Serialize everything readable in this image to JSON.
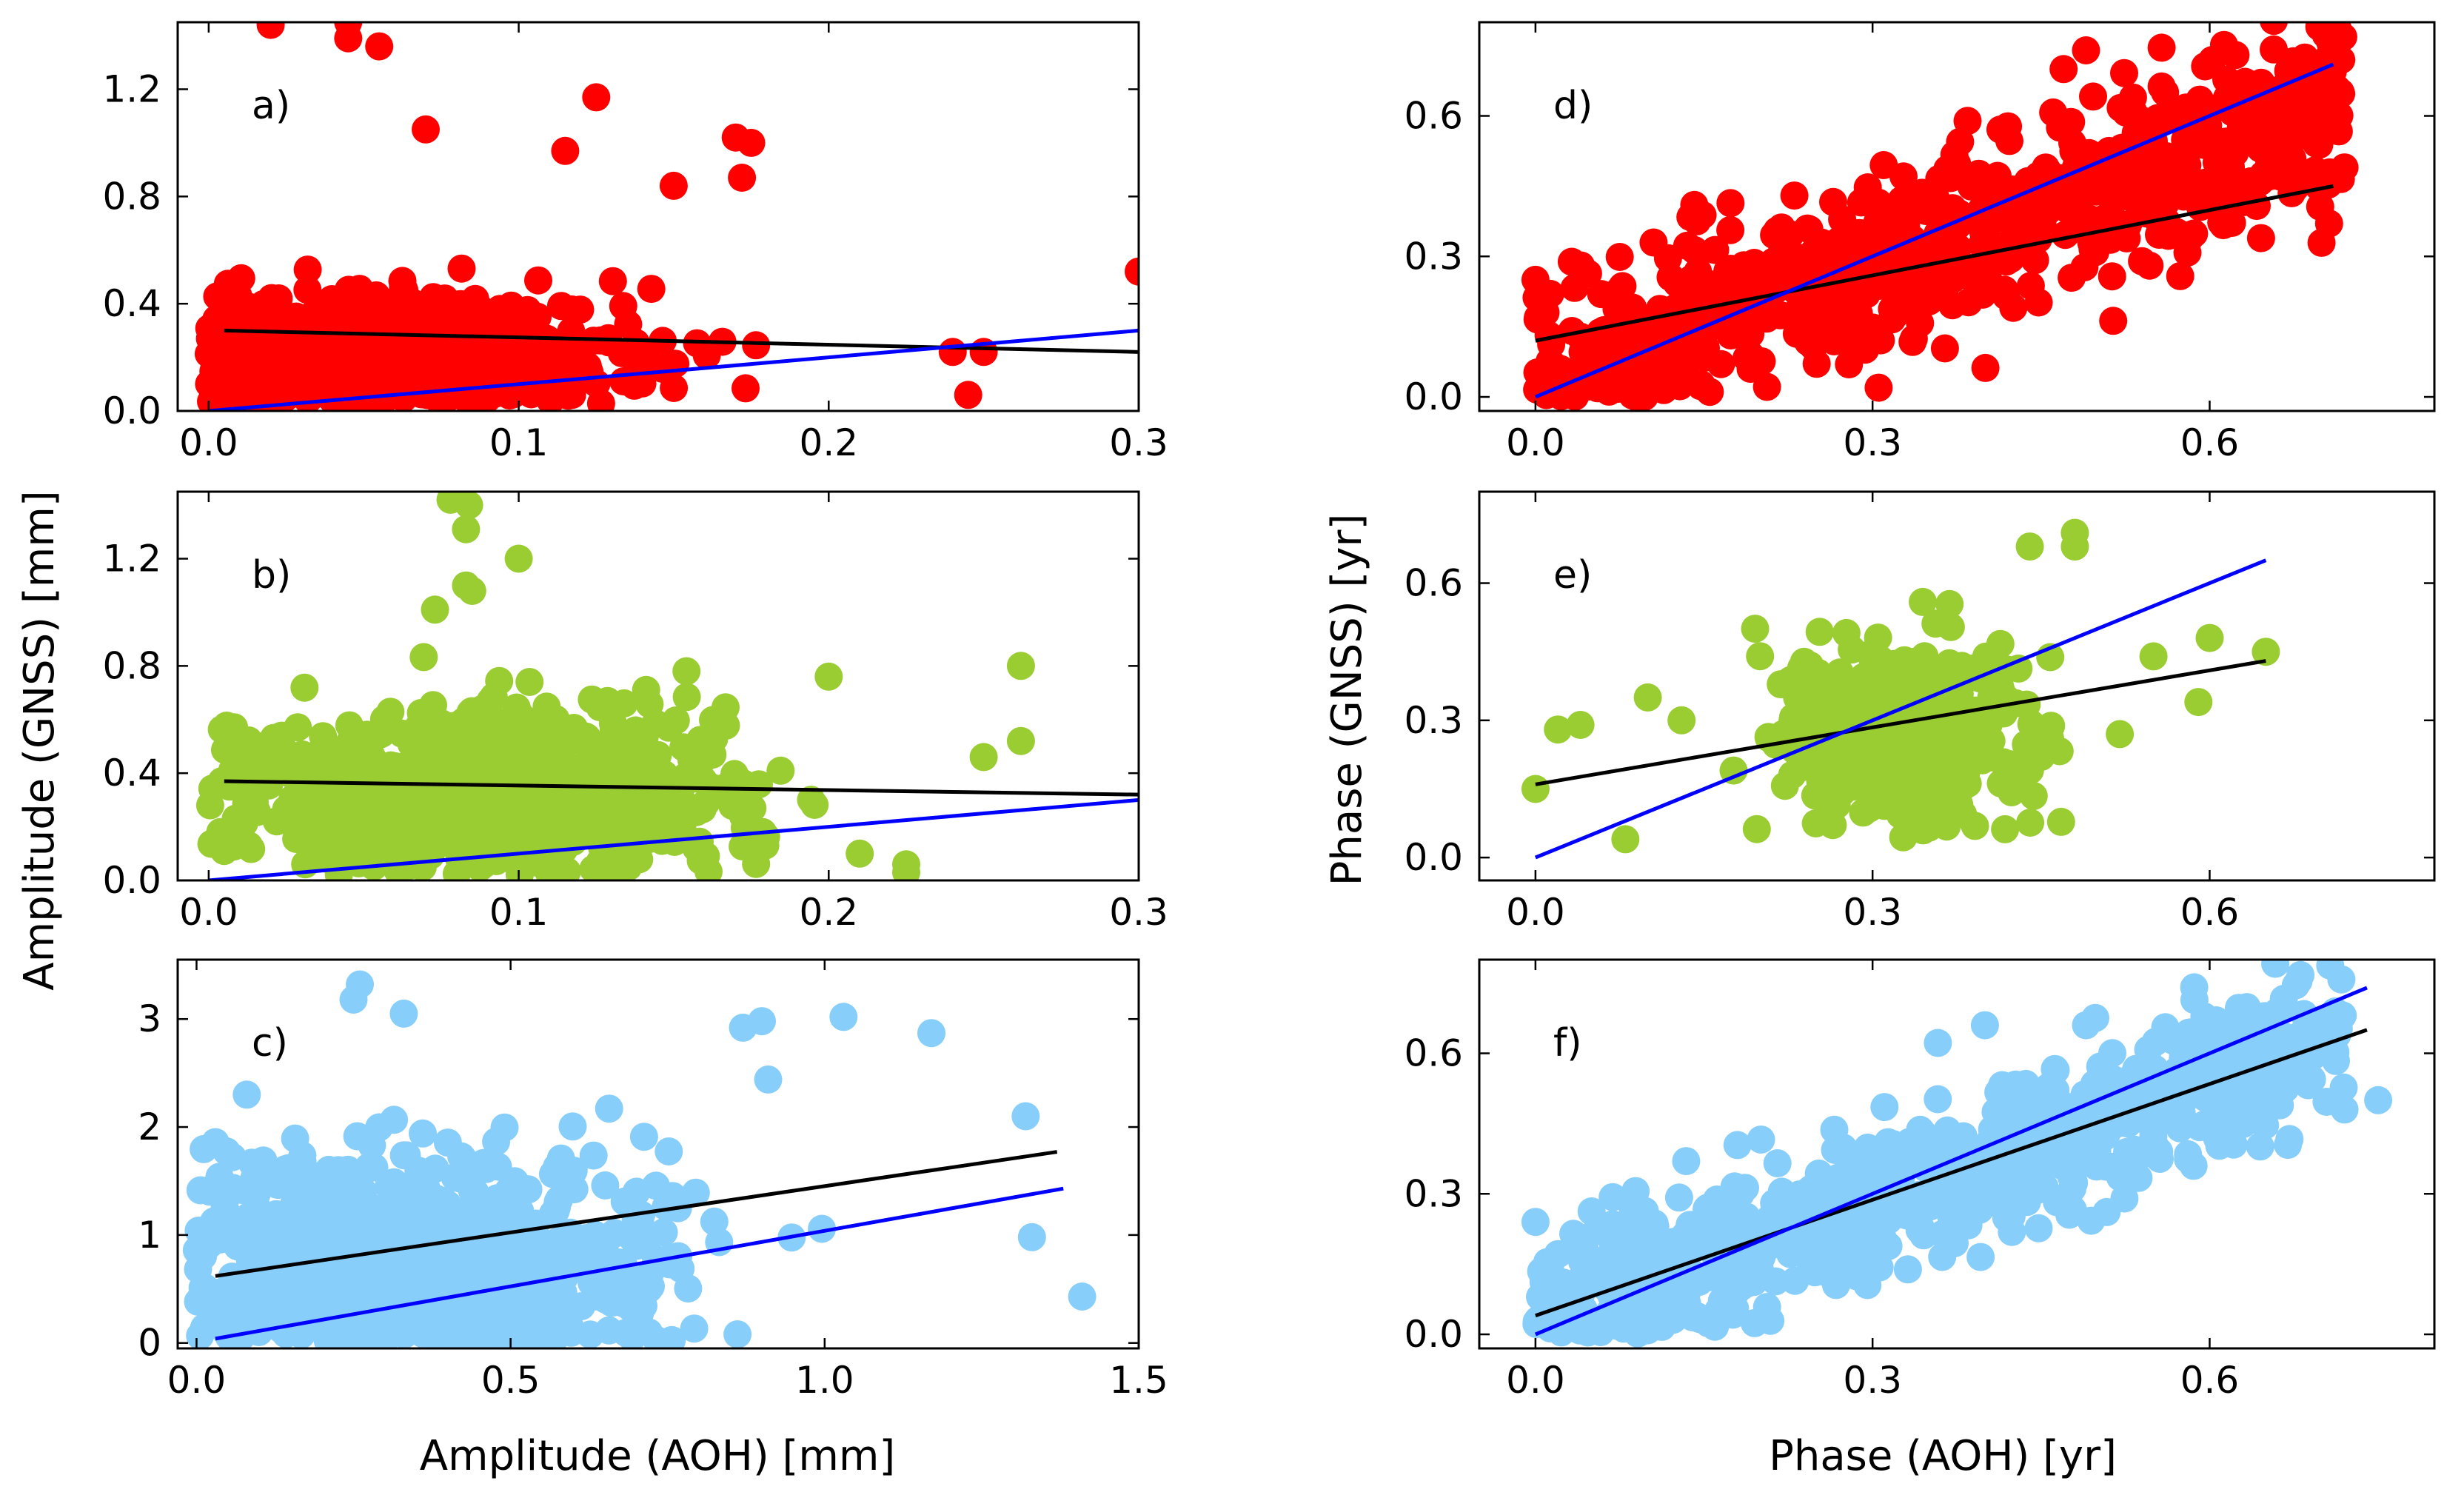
{
  "figure": {
    "left_ylabel": "Amplitude (GNSS) [mm]",
    "right_ylabel": "Phase (GNSS) [yr]",
    "left_xlabel": "Amplitude (AOH) [mm]",
    "right_xlabel": "Phase (AOH) [yr]"
  },
  "chart_data": [
    {
      "id": "a",
      "type": "scatter",
      "label": "a)",
      "color": "#ff0000",
      "xlim": [
        -0.01,
        0.3
      ],
      "ylim": [
        0.0,
        1.45
      ],
      "xticks": [
        0.0,
        0.1,
        0.2,
        0.3
      ],
      "xtick_labels": [
        "0.0",
        "0.1",
        "0.2",
        "0.3"
      ],
      "yticks": [
        0.0,
        0.4,
        0.8,
        1.2
      ],
      "ytick_labels": [
        "0.0",
        "0.4",
        "0.8",
        "1.2"
      ],
      "n_points": 700,
      "cloud": {
        "x_mean": 0.055,
        "x_spread": 0.04,
        "x_max": 0.2,
        "y_mean": 0.22,
        "y_spread": 0.11
      },
      "highlights": [
        [
          0.02,
          1.44
        ],
        [
          0.045,
          1.45
        ],
        [
          0.045,
          1.39
        ],
        [
          0.055,
          1.36
        ],
        [
          0.125,
          1.17
        ],
        [
          0.17,
          1.02
        ],
        [
          0.175,
          1.0
        ],
        [
          0.172,
          0.87
        ],
        [
          0.07,
          1.05
        ],
        [
          0.15,
          0.84
        ],
        [
          0.115,
          0.97
        ],
        [
          0.24,
          0.22
        ],
        [
          0.245,
          0.06
        ],
        [
          0.25,
          0.22
        ],
        [
          0.3,
          0.52
        ]
      ],
      "fit_line": {
        "color": "#000000",
        "x": [
          0.005,
          0.3
        ],
        "y": [
          0.3,
          0.22
        ]
      },
      "one_to_one": {
        "color": "#0000ff",
        "x": [
          0.0,
          0.3
        ],
        "y": [
          0.0,
          0.3
        ]
      }
    },
    {
      "id": "b",
      "type": "scatter",
      "label": "b)",
      "color": "#9acd32",
      "xlim": [
        -0.01,
        0.3
      ],
      "ylim": [
        0.0,
        1.45
      ],
      "xticks": [
        0.0,
        0.1,
        0.2,
        0.3
      ],
      "xtick_labels": [
        "0.0",
        "0.1",
        "0.2",
        "0.3"
      ],
      "yticks": [
        0.0,
        0.4,
        0.8,
        1.2
      ],
      "ytick_labels": [
        "0.0",
        "0.4",
        "0.8",
        "1.2"
      ],
      "n_points": 700,
      "cloud": {
        "x_mean": 0.09,
        "x_spread": 0.045,
        "x_max": 0.2,
        "y_mean": 0.33,
        "y_spread": 0.16
      },
      "highlights": [
        [
          0.078,
          1.42
        ],
        [
          0.084,
          1.4
        ],
        [
          0.083,
          1.31
        ],
        [
          0.083,
          1.1
        ],
        [
          0.085,
          1.08
        ],
        [
          0.1,
          1.2
        ],
        [
          0.073,
          1.01
        ],
        [
          0.2,
          0.76
        ],
        [
          0.262,
          0.8
        ],
        [
          0.262,
          0.52
        ],
        [
          0.25,
          0.46
        ],
        [
          0.225,
          0.06
        ],
        [
          0.225,
          0.03
        ],
        [
          0.21,
          0.1
        ],
        [
          0.005,
          0.11
        ]
      ],
      "fit_line": {
        "color": "#000000",
        "x": [
          0.005,
          0.3
        ],
        "y": [
          0.37,
          0.32
        ]
      },
      "one_to_one": {
        "color": "#0000ff",
        "x": [
          0.0,
          0.3
        ],
        "y": [
          0.0,
          0.3
        ]
      }
    },
    {
      "id": "c",
      "type": "scatter",
      "label": "c)",
      "color": "#87cefa",
      "xlim": [
        -0.03,
        1.5
      ],
      "ylim": [
        -0.05,
        3.55
      ],
      "xticks": [
        0.0,
        0.5,
        1.0,
        1.5
      ],
      "xtick_labels": [
        "0.0",
        "0.5",
        "1.0",
        "1.5"
      ],
      "yticks": [
        0,
        1,
        2,
        3
      ],
      "ytick_labels": [
        "0",
        "1",
        "2",
        "3"
      ],
      "n_points": 700,
      "cloud": {
        "x_mean": 0.35,
        "x_spread": 0.2,
        "x_max": 1.0,
        "y_mean": 0.75,
        "y_spread": 0.5
      },
      "highlights": [
        [
          0.26,
          3.32
        ],
        [
          0.25,
          3.18
        ],
        [
          0.33,
          3.05
        ],
        [
          1.03,
          3.02
        ],
        [
          1.17,
          2.87
        ],
        [
          1.32,
          2.1
        ],
        [
          1.33,
          0.98
        ],
        [
          1.41,
          0.43
        ],
        [
          0.9,
          2.98
        ],
        [
          0.91,
          2.44
        ],
        [
          0.87,
          2.92
        ],
        [
          0.08,
          2.3
        ],
        [
          0.03,
          1.86
        ]
      ],
      "fit_line": {
        "color": "#000000",
        "x": [
          0.03,
          1.37
        ],
        "y": [
          0.62,
          1.77
        ]
      },
      "one_to_one": {
        "color": "#0000ff",
        "x": [
          0.03,
          1.38
        ],
        "y": [
          0.04,
          1.43
        ]
      }
    },
    {
      "id": "d",
      "type": "scatter",
      "label": "d)",
      "color": "#ff0000",
      "xlim": [
        -0.05,
        0.8
      ],
      "ylim": [
        -0.03,
        0.8
      ],
      "xticks": [
        0.0,
        0.3,
        0.6
      ],
      "xtick_labels": [
        "0.0",
        "0.3",
        "0.6"
      ],
      "yticks": [
        0.0,
        0.3,
        0.6
      ],
      "ytick_labels": [
        "0.0",
        "0.3",
        "0.6"
      ],
      "n_points": 700,
      "cloud": {
        "slope": 0.8,
        "intercept": 0.04,
        "y_noise": 0.1
      },
      "highlights": [
        [
          0.49,
          0.74
        ],
        [
          0.47,
          0.7
        ],
        [
          0.72,
          0.49
        ],
        [
          0.0,
          0.25
        ],
        [
          0.01,
          0.02
        ]
      ],
      "fit_line": {
        "color": "#000000",
        "x": [
          0.0,
          0.71
        ],
        "y": [
          0.12,
          0.45
        ]
      },
      "one_to_one": {
        "color": "#0000ff",
        "x": [
          0.0,
          0.71
        ],
        "y": [
          0.0,
          0.71
        ]
      }
    },
    {
      "id": "e",
      "type": "scatter",
      "label": "e)",
      "color": "#9acd32",
      "xlim": [
        -0.05,
        0.8
      ],
      "ylim": [
        -0.05,
        0.8
      ],
      "xticks": [
        0.0,
        0.3,
        0.6
      ],
      "xtick_labels": [
        "0.0",
        "0.3",
        "0.6"
      ],
      "yticks": [
        0.0,
        0.3,
        0.6
      ],
      "ytick_labels": [
        "0.0",
        "0.3",
        "0.6"
      ],
      "n_points": 600,
      "cloud": {
        "x_mean": 0.32,
        "x_spread": 0.05,
        "x_max": 0.5,
        "y_mean": 0.27,
        "y_spread": 0.09
      },
      "highlights": [
        [
          0.48,
          0.71
        ],
        [
          0.48,
          0.68
        ],
        [
          0.44,
          0.68
        ],
        [
          0.0,
          0.15
        ],
        [
          0.02,
          0.28
        ],
        [
          0.04,
          0.29
        ],
        [
          0.08,
          0.04
        ],
        [
          0.1,
          0.35
        ],
        [
          0.13,
          0.3
        ],
        [
          0.6,
          0.48
        ],
        [
          0.65,
          0.45
        ],
        [
          0.59,
          0.34
        ],
        [
          0.55,
          0.44
        ],
        [
          0.52,
          0.27
        ],
        [
          0.45,
          0.22
        ]
      ],
      "fit_line": {
        "color": "#000000",
        "x": [
          0.0,
          0.65
        ],
        "y": [
          0.16,
          0.43
        ]
      },
      "one_to_one": {
        "color": "#0000ff",
        "x": [
          0.0,
          0.65
        ],
        "y": [
          0.0,
          0.65
        ]
      }
    },
    {
      "id": "f",
      "type": "scatter",
      "label": "f)",
      "color": "#87cefa",
      "xlim": [
        -0.05,
        0.8
      ],
      "ylim": [
        -0.03,
        0.8
      ],
      "xticks": [
        0.0,
        0.3,
        0.6
      ],
      "xtick_labels": [
        "0.0",
        "0.3",
        "0.6"
      ],
      "yticks": [
        0.0,
        0.3,
        0.6
      ],
      "ytick_labels": [
        "0.0",
        "0.3",
        "0.6"
      ],
      "n_points": 800,
      "cloud": {
        "slope": 0.85,
        "intercept": 0.03,
        "y_noise": 0.08
      },
      "highlights": [
        [
          0.49,
          0.66
        ],
        [
          0.4,
          0.66
        ],
        [
          0.75,
          0.5
        ],
        [
          0.72,
          0.48
        ],
        [
          0.0,
          0.24
        ]
      ],
      "fit_line": {
        "color": "#000000",
        "x": [
          0.0,
          0.74
        ],
        "y": [
          0.04,
          0.65
        ]
      },
      "one_to_one": {
        "color": "#0000ff",
        "x": [
          0.0,
          0.74
        ],
        "y": [
          0.0,
          0.74
        ]
      }
    }
  ]
}
